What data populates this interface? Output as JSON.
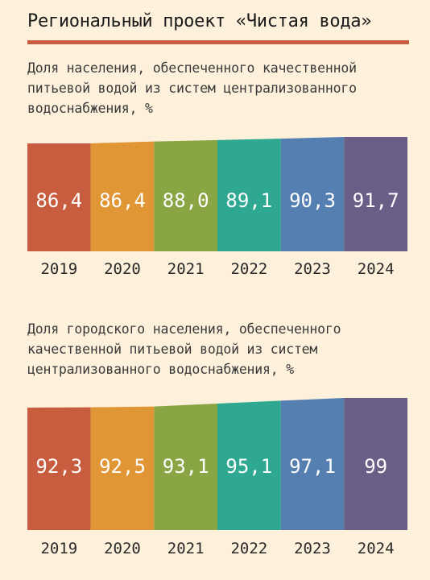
{
  "title": "Региональный проект «Чистая вода»",
  "colors": [
    "#c85c3e",
    "#e09634",
    "#8aa544",
    "#2ea890",
    "#557fb0",
    "#6b5e86"
  ],
  "chart_data": [
    {
      "type": "bar",
      "subtitle": "Доля населения, обеспеченного качественной питьевой водой из систем централизованного водоснабжения, %",
      "categories": [
        "2019",
        "2020",
        "2021",
        "2022",
        "2023",
        "2024"
      ],
      "values": [
        86.4,
        86.4,
        88.0,
        89.1,
        90.3,
        91.7
      ],
      "value_labels": [
        "86,4",
        "86,4",
        "88,0",
        "89,1",
        "90,3",
        "91,7"
      ]
    },
    {
      "type": "bar",
      "subtitle": "Доля городского населения, обеспеченного качественной питьевой водой из систем централизованного водоснабжения, %",
      "categories": [
        "2019",
        "2020",
        "2021",
        "2022",
        "2023",
        "2024"
      ],
      "values": [
        92.3,
        92.5,
        93.1,
        95.1,
        97.1,
        99
      ],
      "value_labels": [
        "92,3",
        "92,5",
        "93,1",
        "95,1",
        "97,1",
        "99"
      ]
    }
  ]
}
